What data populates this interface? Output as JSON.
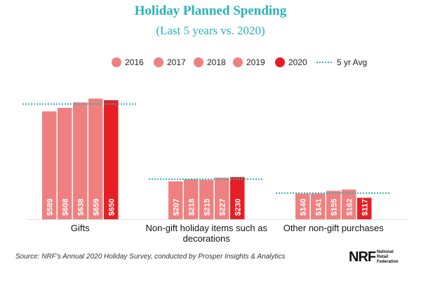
{
  "chart_data": {
    "type": "bar",
    "title": "Holiday Planned Spending",
    "subtitle": "(Last 5 years vs. 2020)",
    "categories": [
      "Gifts",
      "Non-gift holiday items such as decorations",
      "Other non-gift purchases"
    ],
    "category_lines": [
      [
        "Gifts"
      ],
      [
        "Non-gift holiday items such as",
        "decorations"
      ],
      [
        "Other non-gift purchases"
      ]
    ],
    "series": [
      {
        "name": "2016",
        "values": [
          589,
          207,
          140
        ],
        "color": "#f08080"
      },
      {
        "name": "2017",
        "values": [
          608,
          218,
          141
        ],
        "color": "#f08080"
      },
      {
        "name": "2018",
        "values": [
          638,
          215,
          155
        ],
        "color": "#f08080"
      },
      {
        "name": "2019",
        "values": [
          659,
          227,
          162
        ],
        "color": "#f08080"
      },
      {
        "name": "2020",
        "values": [
          650,
          230,
          117
        ],
        "color": "#e81e25"
      }
    ],
    "value_labels": [
      [
        "$589",
        "$207",
        "$140"
      ],
      [
        "$608",
        "$218",
        "$141"
      ],
      [
        "$638",
        "$215",
        "$155"
      ],
      [
        "$659",
        "$227",
        "$162"
      ],
      [
        "$650",
        "$230",
        "$117"
      ]
    ],
    "avg_line": {
      "name": "5 yr Avg",
      "values": [
        629,
        219,
        143
      ],
      "color": "#26b3b8"
    },
    "ylim": [
      0,
      700
    ],
    "grid": false,
    "legend_position": "top-center"
  },
  "source": "Source: NRF's Annual 2020 Holiday Survey, conducted by Prosper Insights & Analytics",
  "logo": {
    "mark": "NRF",
    "lines": [
      "National",
      "Retail",
      "Federation"
    ]
  }
}
